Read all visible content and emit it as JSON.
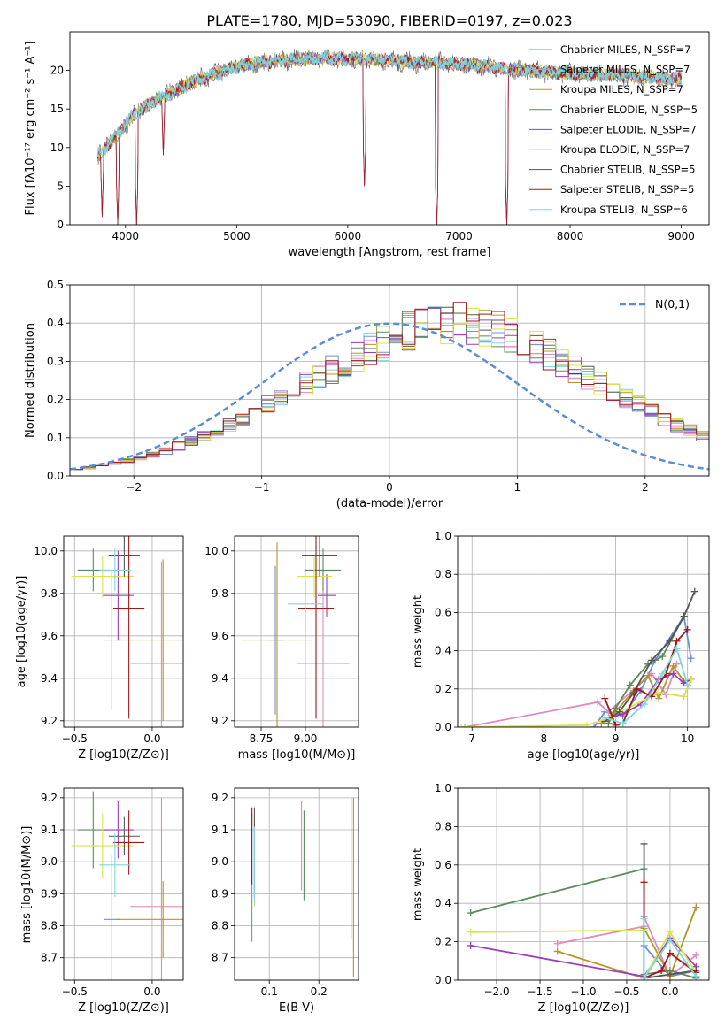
{
  "figure_title": "PLATE=1780, MJD=53090, FIBERID=0197, z=0.023",
  "colors": [
    "#6f8fd4",
    "#e08bbf",
    "#b8922a",
    "#5d8a5d",
    "#9a3fb8",
    "#d9e34c",
    "#555555",
    "#a01818",
    "#7fd6dd"
  ],
  "accent_colors": {
    "dist_line": "#5b8ed6",
    "green": "#5d8a5d",
    "orange": "#d9773a",
    "pink": "#e08bbf"
  },
  "chart_data": [
    {
      "type": "line",
      "title": "PLATE=1780, MJD=53090, FIBERID=0197, z=0.023",
      "xlabel": "wavelength [Angstrom, rest frame]",
      "ylabel": "Flux [fλ10⁻¹⁷ erg cm⁻² s⁻¹ A⁻¹]",
      "xlim": [
        3500,
        9250
      ],
      "ylim": [
        0,
        25
      ],
      "xticks": [
        4000,
        5000,
        6000,
        7000,
        8000,
        9000
      ],
      "yticks": [
        0,
        5,
        10,
        15,
        20
      ],
      "grid": false,
      "legend_position": "top-right",
      "legend": [
        "Chabrier MILES, N_SSP=7",
        "Salpeter MILES, N_SSP=7",
        "Kroupa MILES, N_SSP=7",
        "Chabrier ELODIE, N_SSP=5",
        "Salpeter ELODIE, N_SSP=7",
        "Kroupa ELODIE, N_SSP=7",
        "Chabrier STELIB, N_SSP=5",
        "Salpeter STELIB, N_SSP=5",
        "Kroupa STELIB, N_SSP=6"
      ],
      "continuum": {
        "x": [
          3750,
          3850,
          3950,
          4050,
          4150,
          4250,
          4400,
          4600,
          4800,
          5000,
          5200,
          5400,
          5600,
          5800,
          6000,
          6200,
          6400,
          6600,
          6800,
          7000,
          7200,
          7400,
          7600,
          7800,
          8000,
          8200,
          8400,
          8600,
          8800,
          9000
        ],
        "y": [
          9,
          10.5,
          12,
          14,
          15,
          16,
          17,
          18.5,
          19.5,
          20.5,
          21,
          21.3,
          21.5,
          21.5,
          21.5,
          21.5,
          21.3,
          21,
          21,
          20.8,
          20.6,
          20.2,
          20,
          19.8,
          19.6,
          19.5,
          19.4,
          19.2,
          19,
          18.8
        ]
      },
      "dips": [
        {
          "x": 3790,
          "y": 1
        },
        {
          "x": 3930,
          "y": 0
        },
        {
          "x": 4100,
          "y": 0
        },
        {
          "x": 4340,
          "y": 9
        },
        {
          "x": 6150,
          "y": 5
        },
        {
          "x": 6800,
          "y": 0
        },
        {
          "x": 7430,
          "y": 0
        }
      ]
    },
    {
      "type": "bar",
      "xlabel": "(data-model)/error",
      "ylabel": "Normed distribution",
      "xlim": [
        -2.5,
        2.5
      ],
      "ylim": [
        0,
        0.5
      ],
      "xticks": [
        -2,
        -1,
        0,
        1,
        2
      ],
      "yticks": [
        0.0,
        0.1,
        0.2,
        0.3,
        0.4,
        0.5
      ],
      "grid": true,
      "legend_position": "top-right",
      "legend": [
        "N(0,1)"
      ],
      "bin_edges_start": -2.5,
      "bin_width": 0.1,
      "mean_histogram": [
        0.02,
        0.022,
        0.028,
        0.033,
        0.04,
        0.047,
        0.055,
        0.065,
        0.078,
        0.091,
        0.105,
        0.12,
        0.134,
        0.15,
        0.168,
        0.185,
        0.205,
        0.225,
        0.245,
        0.262,
        0.28,
        0.3,
        0.315,
        0.333,
        0.35,
        0.365,
        0.378,
        0.39,
        0.398,
        0.4,
        0.4,
        0.398,
        0.39,
        0.378,
        0.365,
        0.35,
        0.333,
        0.315,
        0.3,
        0.28,
        0.262,
        0.245,
        0.225,
        0.205,
        0.185,
        0.168,
        0.15,
        0.134,
        0.12,
        0.105,
        0.091,
        0.078,
        0.065,
        0.055,
        0.047,
        0.04,
        0.033,
        0.028,
        0.022,
        0.02
      ],
      "normal_curve": {
        "mu": 0,
        "sigma": 1
      }
    },
    {
      "type": "scatter",
      "subtype": "errorbar",
      "xlabel": "Z [log10(Z/Z⊙)]",
      "ylabel": "age  [log10(age/yr)]",
      "xlim": [
        -0.57,
        0.2
      ],
      "ylim": [
        9.17,
        10.07
      ],
      "xticks": [
        -0.5,
        0.0
      ],
      "yticks": [
        9.2,
        9.4,
        9.6,
        9.8,
        10.0
      ],
      "grid": true,
      "points": [
        {
          "x": -0.26,
          "xerr": 0.05,
          "y": 9.58,
          "yerr": 0.33
        },
        {
          "x": 0.06,
          "xerr": 0.2,
          "y": 9.47,
          "yerr": 0.48
        },
        {
          "x": 0.07,
          "xerr": 0.3,
          "y": 9.58,
          "yerr": 0.38
        },
        {
          "x": -0.38,
          "xerr": 0.1,
          "y": 9.91,
          "yerr": 0.1
        },
        {
          "x": -0.22,
          "xerr": 0.1,
          "y": 9.79,
          "yerr": 0.21
        },
        {
          "x": -0.32,
          "xerr": 0.2,
          "y": 9.88,
          "yerr": 0.1
        },
        {
          "x": -0.18,
          "xerr": 0.1,
          "y": 9.98,
          "yerr": 0.1
        },
        {
          "x": -0.15,
          "xerr": 0.1,
          "y": 9.73,
          "yerr": 0.52
        },
        {
          "x": -0.24,
          "xerr": 0.1,
          "y": 9.91,
          "yerr": 0.1
        }
      ]
    },
    {
      "type": "scatter",
      "subtype": "errorbar",
      "xlabel": "mass [log10(M/M⊙)]",
      "ylabel": "",
      "xlim": [
        8.6,
        9.3
      ],
      "ylim": [
        9.17,
        10.07
      ],
      "xticks": [
        8.75,
        9.0
      ],
      "yticks": [
        9.2,
        9.4,
        9.6,
        9.8,
        10.0
      ],
      "grid": true,
      "points": [
        {
          "x": 8.83,
          "xerr": 0.05,
          "y": 9.58,
          "yerr": 0.35
        },
        {
          "x": 9.1,
          "xerr": 0.15,
          "y": 9.47,
          "yerr": 0.48
        },
        {
          "x": 8.84,
          "xerr": 0.2,
          "y": 9.58,
          "yerr": 0.46
        },
        {
          "x": 9.1,
          "xerr": 0.1,
          "y": 9.91,
          "yerr": 0.1
        },
        {
          "x": 9.12,
          "xerr": 0.05,
          "y": 9.79,
          "yerr": 0.1
        },
        {
          "x": 9.05,
          "xerr": 0.1,
          "y": 9.88,
          "yerr": 0.1
        },
        {
          "x": 9.08,
          "xerr": 0.1,
          "y": 9.98,
          "yerr": 0.1
        },
        {
          "x": 9.06,
          "xerr": 0.1,
          "y": 9.73,
          "yerr": 0.52
        },
        {
          "x": 9.0,
          "xerr": 0.1,
          "y": 9.75,
          "yerr": 0.12
        }
      ]
    },
    {
      "type": "line",
      "xlabel": "age  [log10(age/yr)]",
      "ylabel": "mass weight",
      "xlim": [
        6.8,
        10.3
      ],
      "ylim": [
        0,
        1.0
      ],
      "xticks": [
        7,
        8,
        9,
        10
      ],
      "yticks": [
        0.0,
        0.2,
        0.4,
        0.6,
        0.8,
        1.0
      ],
      "grid": true,
      "series": [
        {
          "x": [
            8.7,
            8.85,
            9.1,
            9.35,
            9.55,
            9.95,
            10.05
          ],
          "y": [
            0.0,
            0.08,
            0.06,
            0.19,
            0.35,
            0.58,
            0.36
          ]
        },
        {
          "x": [
            6.9,
            8.75,
            8.9,
            9.5,
            9.7,
            9.85
          ],
          "y": [
            0.0,
            0.13,
            0.08,
            0.28,
            0.17,
            0.33
          ]
        },
        {
          "x": [
            8.8,
            8.95,
            9.25,
            9.45,
            9.6,
            9.8,
            9.95
          ],
          "y": [
            0.02,
            0.06,
            0.19,
            0.27,
            0.15,
            0.32,
            0.24
          ]
        },
        {
          "x": [
            8.9,
            9.0,
            9.2,
            9.45,
            9.65,
            9.95
          ],
          "y": [
            0.02,
            0.1,
            0.22,
            0.33,
            0.37,
            0.58
          ]
        },
        {
          "x": [
            8.85,
            9.1,
            9.35,
            9.6,
            9.8,
            9.95,
            10.05
          ],
          "y": [
            0.04,
            0.07,
            0.12,
            0.25,
            0.28,
            0.23,
            0.25
          ]
        },
        {
          "x": [
            6.85,
            8.6,
            8.85,
            9.6,
            9.95,
            10.05
          ],
          "y": [
            0.0,
            0.01,
            0.04,
            0.18,
            0.16,
            0.25
          ]
        },
        {
          "x": [
            8.85,
            9.05,
            9.25,
            9.5,
            9.75,
            9.95,
            10.1
          ],
          "y": [
            0.03,
            0.08,
            0.18,
            0.35,
            0.45,
            0.58,
            0.71
          ]
        },
        {
          "x": [
            8.85,
            9.0,
            9.1,
            9.3,
            9.5,
            9.7,
            9.85,
            10.0
          ],
          "y": [
            0.15,
            0.01,
            0.02,
            0.2,
            0.16,
            0.28,
            0.45,
            0.51
          ]
        },
        {
          "x": [
            8.85,
            9.1,
            9.4,
            9.65,
            9.85,
            10.0
          ],
          "y": [
            0.05,
            0.02,
            0.12,
            0.28,
            0.41,
            0.22
          ]
        }
      ]
    },
    {
      "type": "scatter",
      "subtype": "errorbar",
      "xlabel": "Z [log10(Z/Z⊙)]",
      "ylabel": "mass [log10(M/M⊙)]",
      "xlim": [
        -0.57,
        0.2
      ],
      "ylim": [
        8.63,
        9.23
      ],
      "xticks": [
        -0.5,
        0.0
      ],
      "yticks": [
        8.7,
        8.8,
        8.9,
        9.0,
        9.1,
        9.2
      ],
      "grid": true,
      "points": [
        {
          "x": -0.26,
          "xerr": 0.05,
          "y": 8.82,
          "yerr": 0.2
        },
        {
          "x": 0.06,
          "xerr": 0.2,
          "y": 8.86,
          "yerr": 0.34
        },
        {
          "x": 0.07,
          "xerr": 0.3,
          "y": 8.82,
          "yerr": 0.12
        },
        {
          "x": -0.38,
          "xerr": 0.1,
          "y": 9.1,
          "yerr": 0.12
        },
        {
          "x": -0.22,
          "xerr": 0.1,
          "y": 9.1,
          "yerr": 0.09
        },
        {
          "x": -0.32,
          "xerr": 0.2,
          "y": 9.05,
          "yerr": 0.1
        },
        {
          "x": -0.18,
          "xerr": 0.1,
          "y": 9.08,
          "yerr": 0.06
        },
        {
          "x": -0.15,
          "xerr": 0.1,
          "y": 9.06,
          "yerr": 0.1
        },
        {
          "x": -0.24,
          "xerr": 0.1,
          "y": 8.99,
          "yerr": 0.1
        }
      ]
    },
    {
      "type": "scatter",
      "subtype": "errorbar",
      "xlabel": "E(B-V)",
      "ylabel": "",
      "xlim": [
        0.03,
        0.28
      ],
      "ylim": [
        8.63,
        9.23
      ],
      "xticks": [
        0.1,
        0.2
      ],
      "yticks": [
        8.7,
        8.8,
        8.9,
        9.0,
        9.1,
        9.2
      ],
      "grid": true,
      "points": [
        {
          "x": 0.065,
          "xerr": 0,
          "y": 8.95,
          "yerr": 0.2
        },
        {
          "x": 0.165,
          "xerr": 0,
          "y": 9.05,
          "yerr": 0.14
        },
        {
          "x": 0.27,
          "xerr": 0,
          "y": 8.92,
          "yerr": 0.28
        },
        {
          "x": 0.17,
          "xerr": 0,
          "y": 9.02,
          "yerr": 0.14
        },
        {
          "x": 0.265,
          "xerr": 0,
          "y": 8.98,
          "yerr": 0.22
        },
        {
          "x": 0.07,
          "xerr": 0,
          "y": 9.0,
          "yerr": 0.14
        },
        {
          "x": 0.07,
          "xerr": 0,
          "y": 9.03,
          "yerr": 0.14
        },
        {
          "x": 0.065,
          "xerr": 0,
          "y": 9.05,
          "yerr": 0.12
        },
        {
          "x": 0.07,
          "xerr": 0,
          "y": 8.99,
          "yerr": 0.12
        }
      ]
    },
    {
      "type": "line",
      "xlabel": "Z [log10(Z/Z⊙)]",
      "ylabel": "mass weight",
      "xlim": [
        -2.45,
        0.45
      ],
      "ylim": [
        0,
        1.0
      ],
      "xticks": [
        -2.0,
        -1.5,
        -1.0,
        -0.5,
        0.0
      ],
      "yticks": [
        0.0,
        0.2,
        0.4,
        0.6,
        0.8,
        1.0
      ],
      "grid": true,
      "series": [
        {
          "x": [
            -0.3,
            0.0,
            0.3
          ],
          "y": [
            0.18,
            0.02,
            0.05
          ]
        },
        {
          "x": [
            -1.3,
            -0.3,
            -0.3,
            0.0,
            0.3
          ],
          "y": [
            0.19,
            0.28,
            0.33,
            0.02,
            0.13
          ]
        },
        {
          "x": [
            -1.3,
            -0.3,
            -0.3,
            0.0,
            0.3
          ],
          "y": [
            0.15,
            0.01,
            0.27,
            0.02,
            0.38
          ]
        },
        {
          "x": [
            -2.3,
            -0.3,
            -0.3,
            0.0,
            0.3
          ],
          "y": [
            0.35,
            0.58,
            0.03,
            0.05,
            0.01
          ]
        },
        {
          "x": [
            -2.3,
            -0.3,
            0.0,
            0.3
          ],
          "y": [
            0.18,
            0.02,
            0.22,
            0.07
          ]
        },
        {
          "x": [
            -2.3,
            -0.3,
            -0.3,
            0.0,
            0.3
          ],
          "y": [
            0.25,
            0.26,
            0.01,
            0.25,
            0.04
          ]
        },
        {
          "x": [
            -0.3,
            -0.3,
            0.0,
            0.3
          ],
          "y": [
            0.71,
            0.01,
            0.03,
            0.05
          ]
        },
        {
          "x": [
            -0.3,
            -0.3,
            -0.1,
            0.0,
            0.3
          ],
          "y": [
            0.51,
            0.01,
            0.05,
            0.14,
            0.04
          ]
        },
        {
          "x": [
            -0.3,
            -0.3,
            0.0,
            0.3
          ],
          "y": [
            0.32,
            0.01,
            0.21,
            0.02
          ]
        }
      ]
    }
  ]
}
